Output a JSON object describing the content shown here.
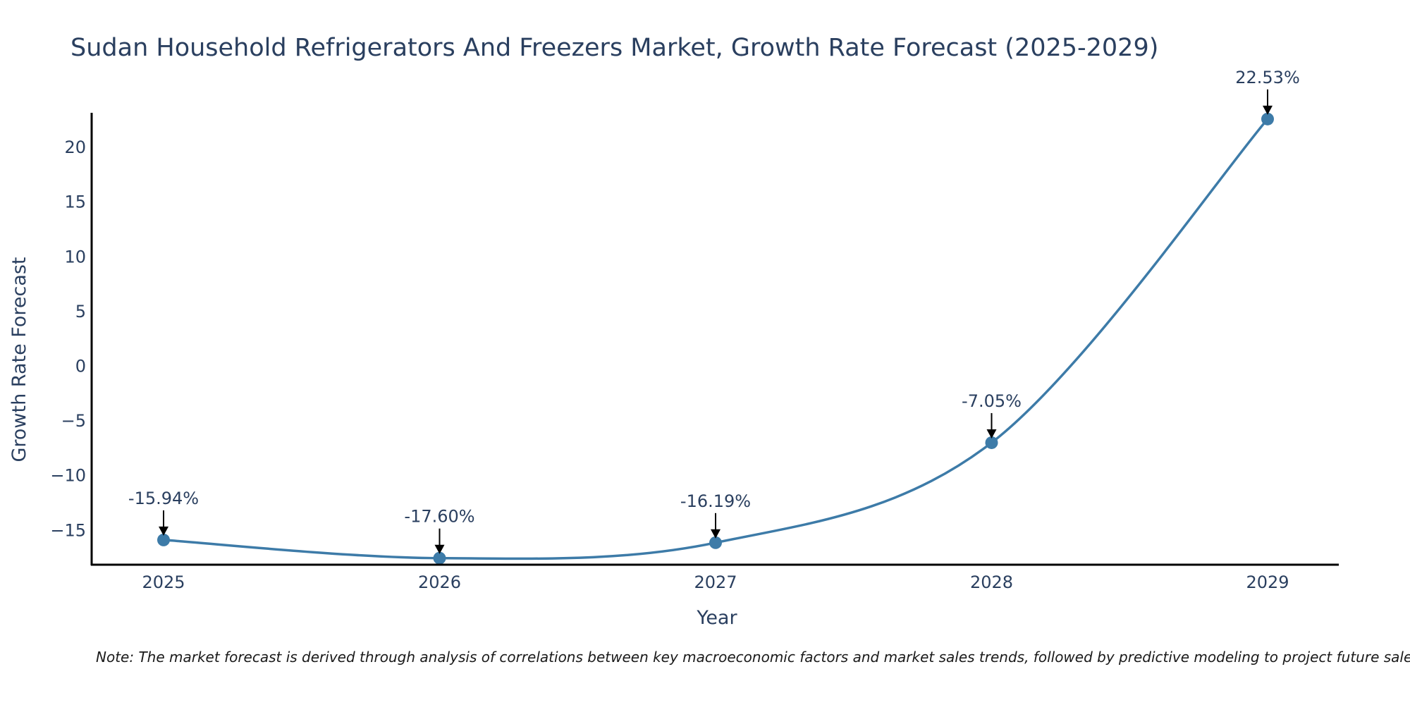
{
  "chart_data": {
    "type": "line",
    "title": "Sudan Household Refrigerators And Freezers Market, Growth Rate Forecast (2025-2029)",
    "xlabel": "Year",
    "ylabel": "Growth Rate Forecast",
    "categories": [
      "2025",
      "2026",
      "2027",
      "2028",
      "2029"
    ],
    "values": [
      -15.94,
      -17.6,
      -16.19,
      -7.05,
      22.53
    ],
    "data_labels": [
      "-15.94%",
      "-17.60%",
      "-16.19%",
      "-7.05%",
      "22.53%"
    ],
    "ylim": [
      -18.2,
      23.1
    ],
    "yticks": [
      -15,
      -10,
      -5,
      0,
      5,
      10,
      15,
      20
    ],
    "ytick_labels": [
      "−15",
      "−10",
      "−5",
      "0",
      "5",
      "10",
      "15",
      "20"
    ],
    "line_color": "#3d7ba8",
    "marker_color": "#3d7ba8",
    "grid": false,
    "legend": "none"
  },
  "note": "Note: The market forecast is derived through analysis of correlations between key macroeconomic factors and market sales trends, followed by predictive modeling to project future sales."
}
